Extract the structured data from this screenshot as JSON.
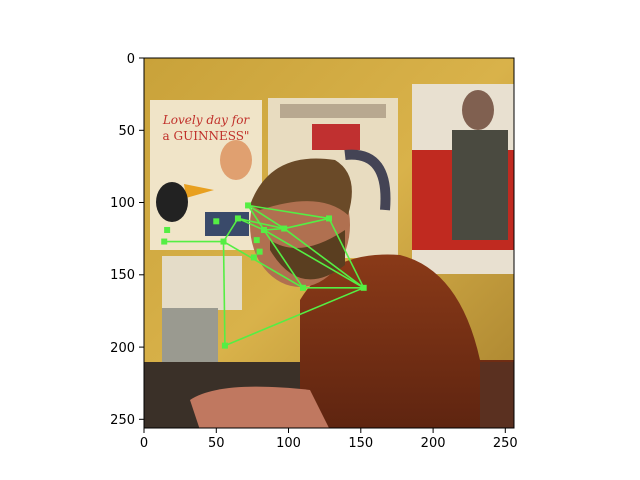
{
  "figure": {
    "image_description": "photo of a bearded man at a desk in front of a yellow wall with posters",
    "poster_texts": [
      "Lovely day for a GUINNESS"
    ],
    "x_axis": {
      "range": [
        0,
        256
      ],
      "ticks": [
        "0",
        "50",
        "100",
        "150",
        "200",
        "250"
      ]
    },
    "y_axis": {
      "range": [
        0,
        256
      ],
      "inverted": true,
      "ticks": [
        "0",
        "50",
        "100",
        "150",
        "200",
        "250"
      ]
    },
    "overlay_color": "#55ee44",
    "keypoints": [
      [
        72,
        102
      ],
      [
        65,
        111
      ],
      [
        83,
        119
      ],
      [
        97,
        118
      ],
      [
        128,
        111
      ],
      [
        55,
        127
      ],
      [
        78,
        126
      ],
      [
        110,
        159
      ],
      [
        152,
        159
      ],
      [
        56,
        199
      ],
      [
        50,
        113
      ],
      [
        14,
        127
      ],
      [
        16,
        119
      ],
      [
        76,
        138
      ],
      [
        80,
        134
      ]
    ],
    "skeleton": [
      [
        0,
        4
      ],
      [
        0,
        3
      ],
      [
        0,
        2
      ],
      [
        1,
        2
      ],
      [
        1,
        5
      ],
      [
        2,
        3
      ],
      [
        3,
        4
      ],
      [
        3,
        8
      ],
      [
        4,
        8
      ],
      [
        2,
        7
      ],
      [
        7,
        8
      ],
      [
        2,
        8
      ],
      [
        5,
        7
      ],
      [
        5,
        9
      ],
      [
        9,
        8
      ],
      [
        11,
        5
      ],
      [
        1,
        3
      ]
    ]
  }
}
